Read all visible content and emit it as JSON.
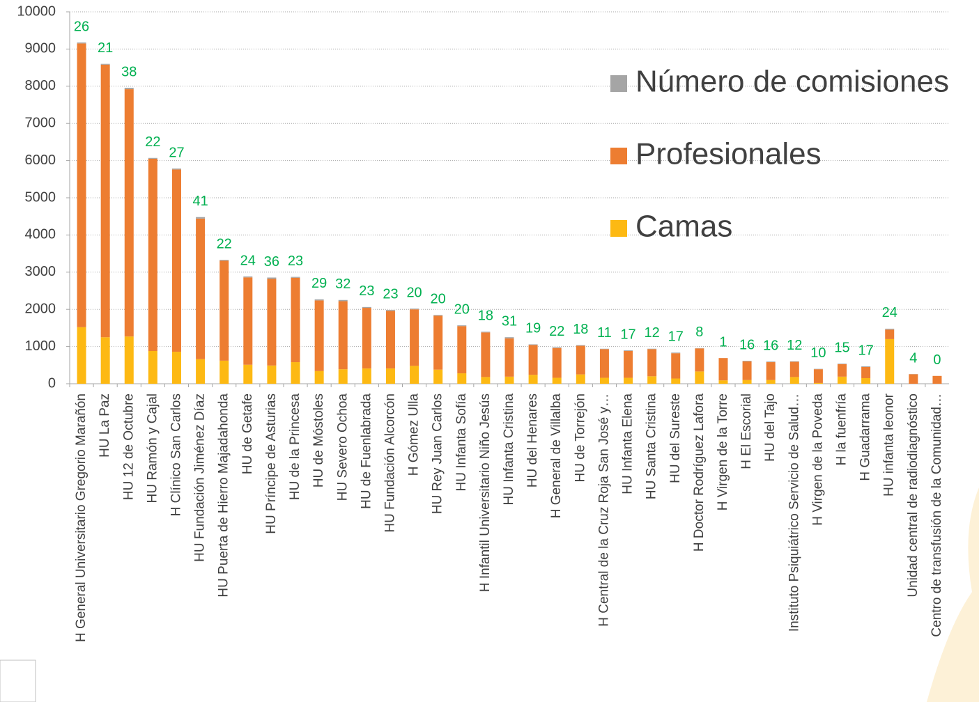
{
  "chart_data": {
    "type": "stacked_bar",
    "categories": [
      "H General Universitario Gregorio Marañón",
      "HU La Paz",
      "HU 12 de Octubre",
      "HU Ramón y Cajal",
      "H Clínico San Carlos",
      "HU Fundación Jiménez Díaz",
      "HU Puerta de Hierro Majadahonda",
      "HU de Getafe",
      "HU Príncipe de Asturias",
      "HU de la Princesa",
      "HU de Móstoles",
      "HU Severo Ochoa",
      "HU de Fuenlabrada",
      "HU Fundación Alcorcón",
      "H Gómez Ulla",
      "HU Rey Juan Carlos",
      "HU Infanta Sofía",
      "H Infantil Universitario Niño Jesús",
      "HU Infanta Cristina",
      "HU del Henares",
      "H General de Villalba",
      "HU de Torrejón",
      "H Central de la Cruz Roja San José y…",
      "HU Infanta Elena",
      "HU Santa Cristina",
      "HU del Sureste",
      "H Doctor Rodríguez Lafora",
      "H Virgen de la Torre",
      "H El Escorial",
      "HU del Tajo",
      "Instituto Psiquiátrico Servicio de Salud…",
      "H Virgen de la Poveda",
      "H la fuenfría",
      "H Guadarrama",
      "HU infanta leonor",
      "Unidad central de radiodiagnóstico",
      "Centro de transfusión de la Comunidad…"
    ],
    "series": [
      {
        "name": "Camas",
        "color": "#fdb913",
        "values": [
          1520,
          1250,
          1270,
          880,
          860,
          660,
          620,
          510,
          490,
          580,
          340,
          390,
          410,
          410,
          480,
          380,
          280,
          180,
          190,
          240,
          160,
          250,
          160,
          160,
          200,
          140,
          330,
          90,
          100,
          100,
          180,
          20,
          190,
          150,
          1200,
          0,
          0
        ]
      },
      {
        "name": "Profesionales",
        "color": "#ed7d31",
        "values": [
          7630,
          7330,
          6650,
          5170,
          4900,
          3780,
          2690,
          2350,
          2330,
          2270,
          1900,
          1830,
          1630,
          1550,
          1520,
          1450,
          1270,
          1200,
          1030,
          800,
          800,
          770,
          770,
          720,
          730,
          680,
          620,
          600,
          500,
          480,
          410,
          370,
          335,
          300,
          256,
          256,
          210
        ]
      },
      {
        "name": "Número de comisiones",
        "color": "#a5a5a5",
        "values": [
          26,
          21,
          38,
          22,
          27,
          41,
          22,
          24,
          36,
          23,
          29,
          32,
          23,
          23,
          20,
          20,
          20,
          18,
          31,
          19,
          22,
          18,
          11,
          17,
          12,
          17,
          8,
          1,
          16,
          16,
          12,
          10,
          15,
          17,
          24,
          4,
          0
        ]
      }
    ],
    "label_color": "#00b050",
    "ylim": [
      0,
      10000
    ],
    "yticks": [
      0,
      1000,
      2000,
      3000,
      4000,
      5000,
      6000,
      7000,
      8000,
      9000,
      10000
    ],
    "grid": true,
    "legend": "upper right"
  }
}
